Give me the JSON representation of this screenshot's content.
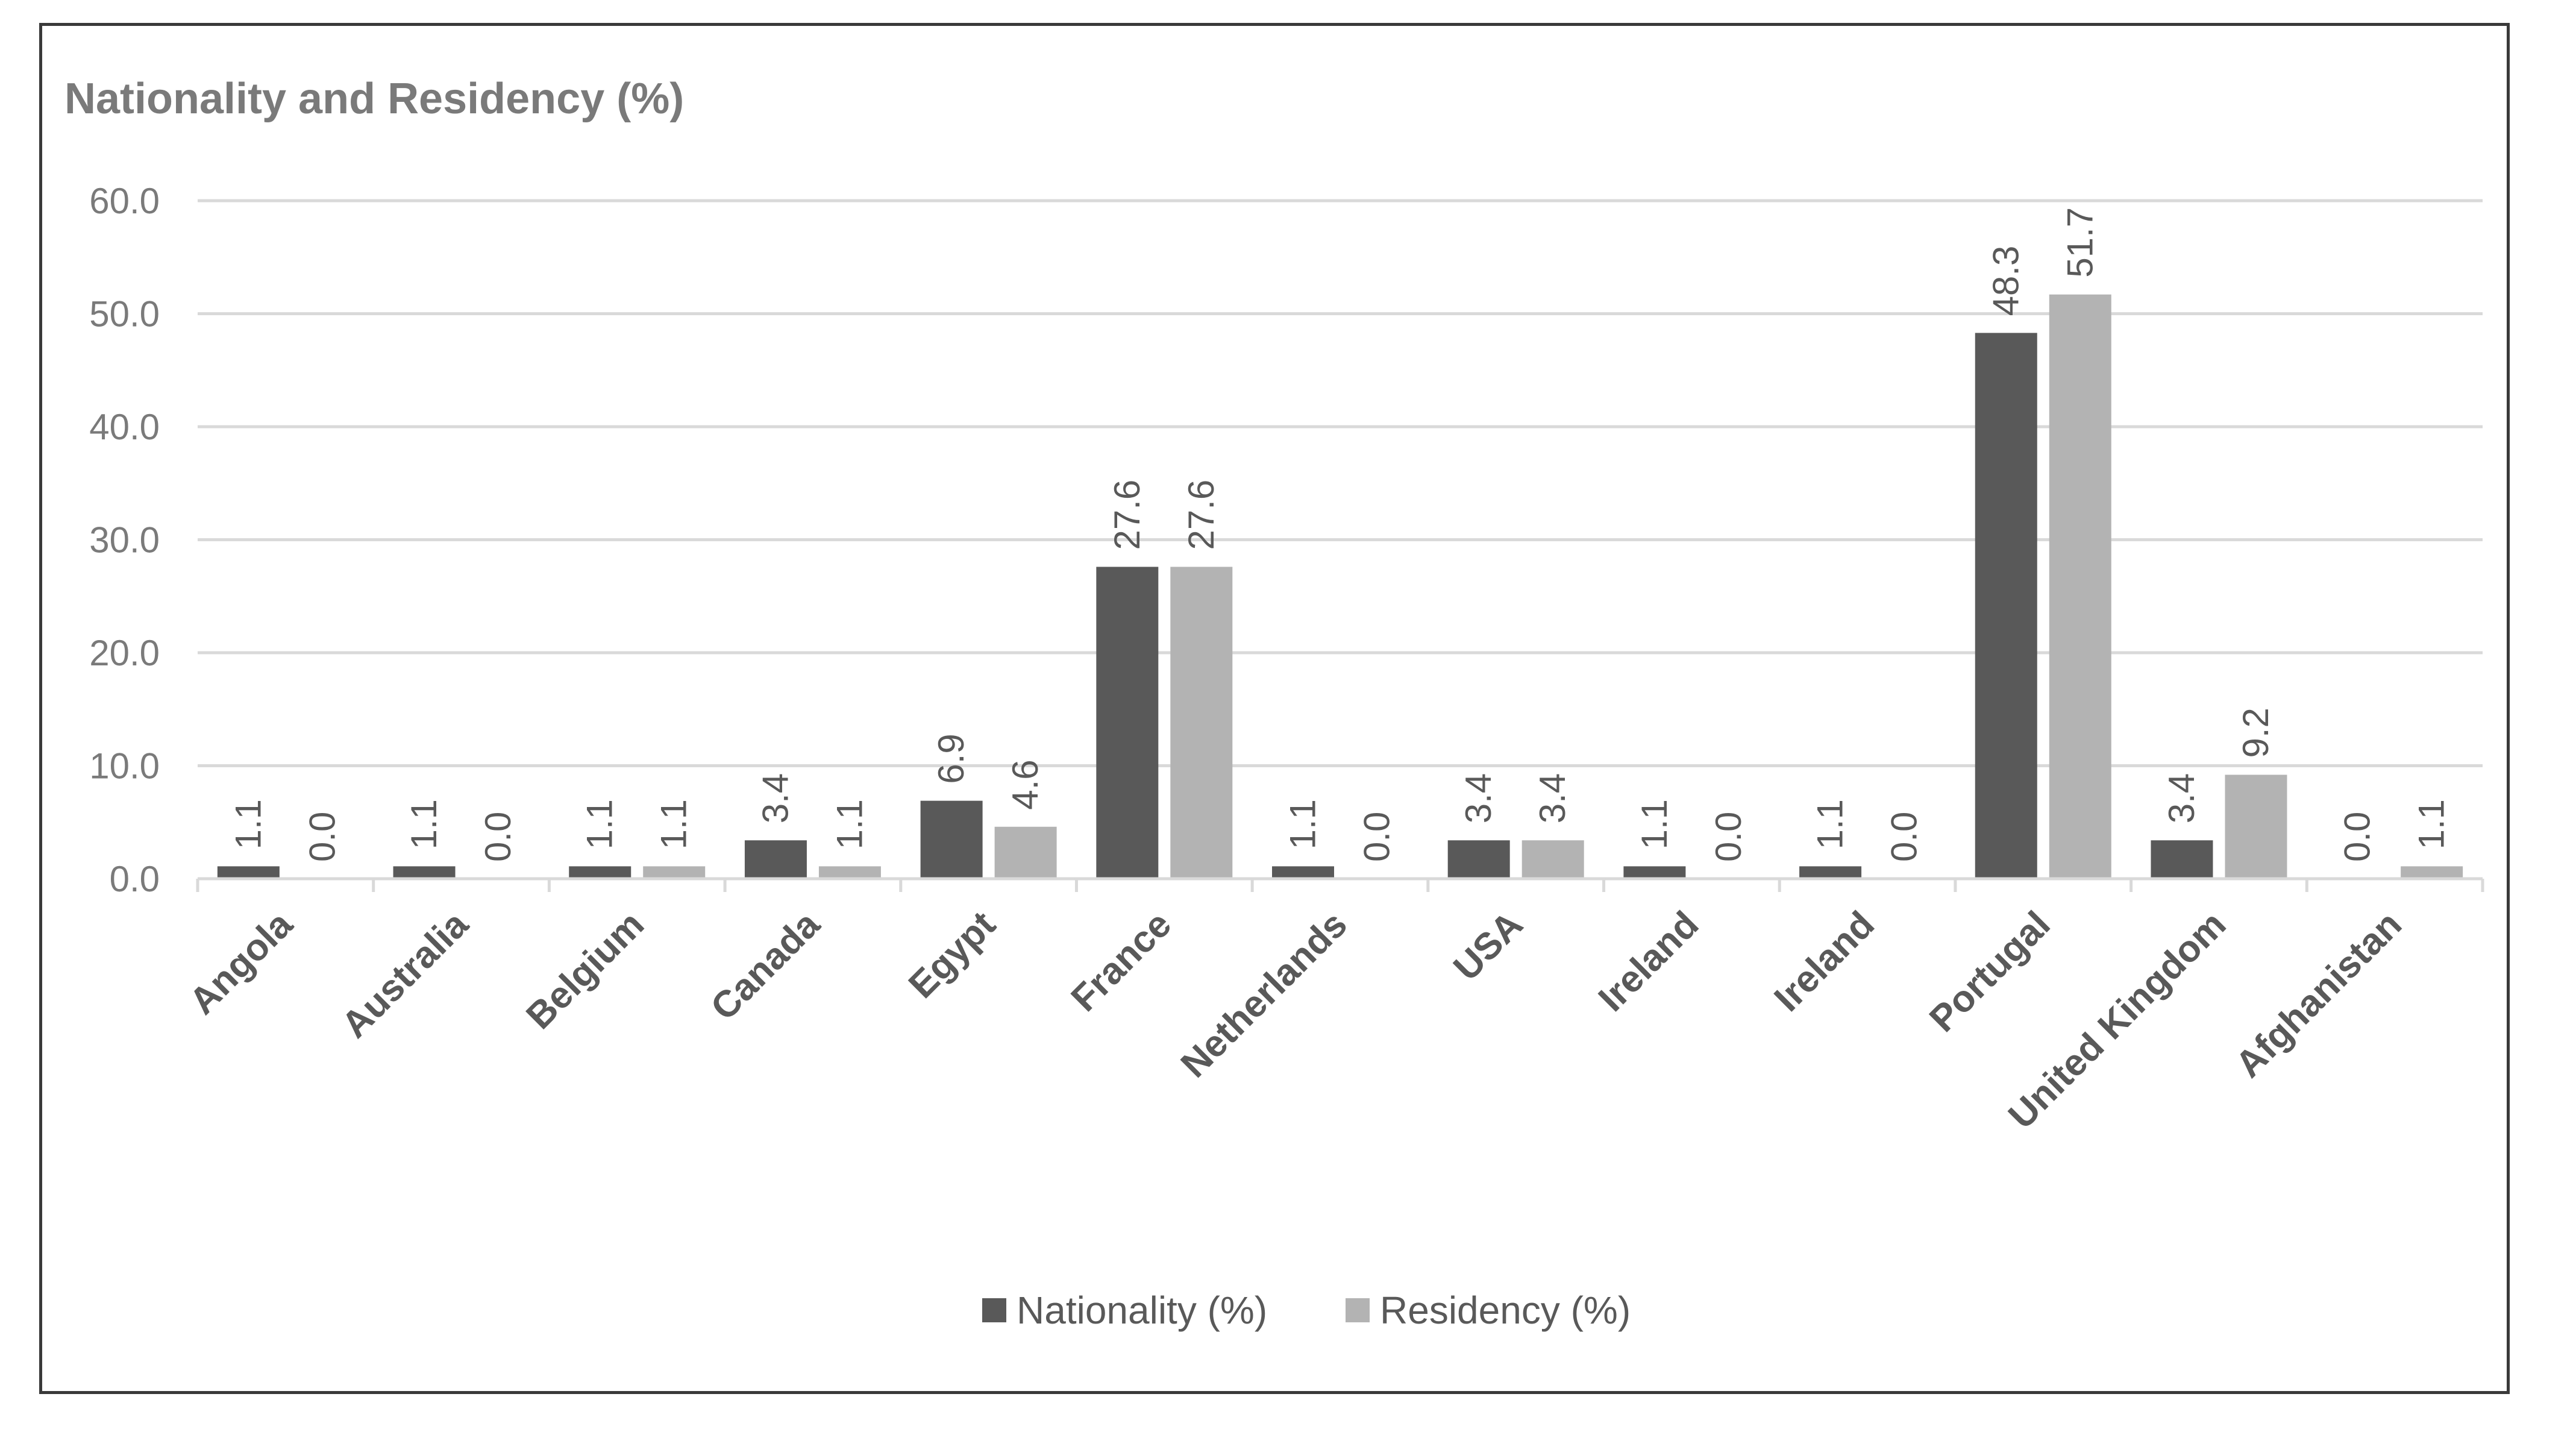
{
  "chart_data": {
    "type": "bar",
    "title": "Nationality and Residency (%)",
    "xlabel": "",
    "ylabel": "",
    "ylim": [
      0,
      60
    ],
    "yticks": [
      "0.0",
      "10.0",
      "20.0",
      "30.0",
      "40.0",
      "50.0",
      "60.0"
    ],
    "grid": true,
    "legend_position": "bottom",
    "categories": [
      "Angola",
      "Australia",
      "Belgium",
      "Canada",
      "Egypt",
      "France",
      "Netherlands",
      "USA",
      "Ireland",
      "Ireland",
      "Portugal",
      "United Kingdom",
      "Afghanistan"
    ],
    "series": [
      {
        "name": "Nationality (%)",
        "color": "#595959",
        "values": [
          1.1,
          1.1,
          1.1,
          3.4,
          6.9,
          27.6,
          1.1,
          3.4,
          1.1,
          1.1,
          48.3,
          3.4,
          0.0
        ],
        "labels": [
          "1.1",
          "1.1",
          "1.1",
          "3.4",
          "6.9",
          "27.6",
          "1.1",
          "3.4",
          "1.1",
          "1.1",
          "48.3",
          "3.4",
          "0.0"
        ]
      },
      {
        "name": "Residency (%)",
        "color": "#b3b3b3",
        "values": [
          0.0,
          0.0,
          1.1,
          1.1,
          4.6,
          27.6,
          0.0,
          3.4,
          0.0,
          0.0,
          51.7,
          9.2,
          1.1
        ],
        "labels": [
          "0.0",
          "0.0",
          "1.1",
          "1.1",
          "4.6",
          "27.6",
          "0.0",
          "3.4",
          "0.0",
          "0.0",
          "51.7",
          "9.2",
          "1.1"
        ]
      }
    ]
  }
}
